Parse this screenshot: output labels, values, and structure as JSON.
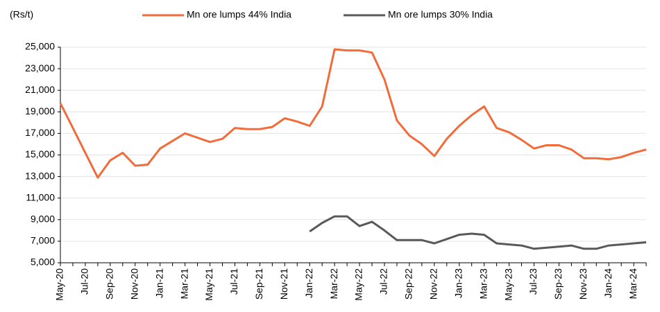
{
  "chart_data": {
    "type": "line",
    "y_axis_label": "(Rs/t)",
    "categories": [
      "May-20",
      null,
      "Jul-20",
      null,
      "Sep-20",
      null,
      "Nov-20",
      null,
      "Jan-21",
      null,
      "Mar-21",
      null,
      "May-21",
      null,
      "Jul-21",
      null,
      "Sep-21",
      null,
      "Nov-21",
      null,
      "Jan-22",
      null,
      "Mar-22",
      null,
      "May-22",
      null,
      "Jul-22",
      null,
      "Sep-22",
      null,
      "Nov-22",
      null,
      "Jan-23",
      null,
      "Mar-23",
      null,
      "May-23",
      null,
      "Jul-23",
      null,
      "Sep-23",
      null,
      "Nov-23",
      null,
      "Jan-24",
      null,
      "Mar-24",
      null
    ],
    "series": [
      {
        "name": "Mn ore lumps 44% India",
        "color": "#f26b3a",
        "values": [
          19800,
          17500,
          15200,
          12900,
          14500,
          15200,
          14000,
          14100,
          15600,
          16300,
          17000,
          16600,
          16200,
          16500,
          17500,
          17400,
          17400,
          17600,
          18400,
          18100,
          17700,
          19500,
          24800,
          24700,
          24700,
          24500,
          22000,
          18200,
          16800,
          16000,
          14900,
          16500,
          17700,
          18700,
          19500,
          17500,
          17100,
          16400,
          15600,
          15900,
          15900,
          15500,
          14700,
          14700,
          14600,
          14800,
          15200,
          15500
        ]
      },
      {
        "name": "Mn ore lumps 30% India",
        "color": "#595959",
        "values": [
          null,
          null,
          null,
          null,
          null,
          null,
          null,
          null,
          null,
          null,
          null,
          null,
          null,
          null,
          null,
          null,
          null,
          null,
          null,
          null,
          7900,
          8700,
          9300,
          9300,
          8400,
          8800,
          8000,
          7100,
          7100,
          7100,
          6800,
          7200,
          7600,
          7700,
          7600,
          6800,
          6700,
          6600,
          6300,
          6400,
          6500,
          6600,
          6300,
          6300,
          6600,
          6700,
          6800,
          6900
        ]
      }
    ],
    "ylim": [
      5000,
      25000
    ],
    "yticks": [
      {
        "value": 5000,
        "label": "5,000"
      },
      {
        "value": 7000,
        "label": "7,000"
      },
      {
        "value": 9000,
        "label": "9,000"
      },
      {
        "value": 11000,
        "label": "11,000"
      },
      {
        "value": 13000,
        "label": "13,000"
      },
      {
        "value": 15000,
        "label": "15,000"
      },
      {
        "value": 17000,
        "label": "17,000"
      },
      {
        "value": 19000,
        "label": "19,000"
      },
      {
        "value": 21000,
        "label": "21,000"
      },
      {
        "value": 23000,
        "label": "23,000"
      },
      {
        "value": 25000,
        "label": "25,000"
      }
    ],
    "grid": true,
    "legend": "top"
  }
}
